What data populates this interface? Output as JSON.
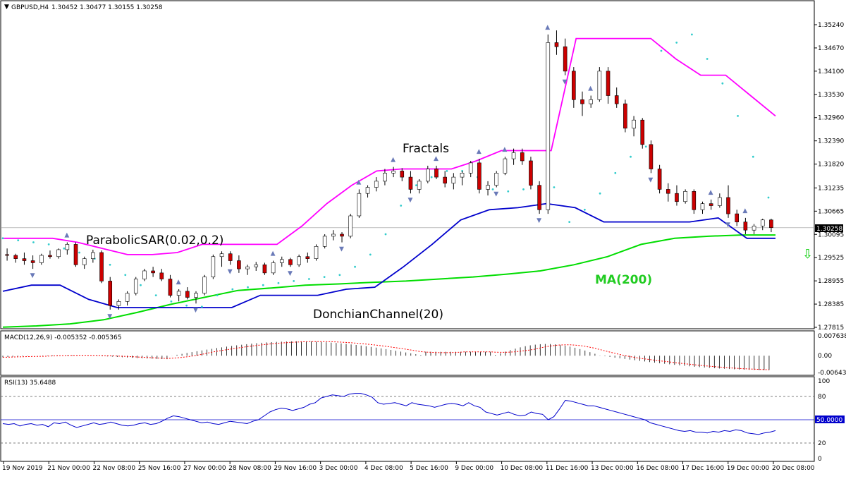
{
  "header": {
    "symbol": "GBPUSD,H4",
    "ohlc": "1.30452 1.30477 1.30155 1.30258"
  },
  "colors": {
    "background": "#ffffff",
    "candle_up": "#ffffff",
    "candle_down": "#cc0000",
    "candle_outline": "#000000",
    "sar": "#33cccc",
    "donchian_upper": "#ff00ff",
    "donchian_lower": "#0000cc",
    "ma200": "#00dd00",
    "ma200_label": "#22cc22",
    "fractal": "#6a7ab8",
    "macd_hist": "#000000",
    "macd_signal": "#ff0000",
    "rsi": "#0000cc",
    "arrow": "#00cc00"
  },
  "annotations": {
    "fractals": "Fractals",
    "sar": "ParabolicSAR(0.02,0.2)",
    "donchian": "DonchianChannel(20)",
    "ma": "MA(200)"
  },
  "macd": {
    "label": "MACD(12,26,9) -0.005352 -0.005365",
    "ticks": [
      "0.007638",
      "0.00",
      "-0.006434"
    ],
    "ylim": [
      -0.006434,
      0.007638
    ]
  },
  "rsi": {
    "label": "RSI(13) 35.6488",
    "ticks": [
      "100",
      "80",
      "50.0000",
      "20",
      "0"
    ],
    "levels": [
      80,
      50,
      20
    ],
    "values": [
      45,
      44,
      45,
      42,
      44,
      45,
      43,
      44,
      41,
      46,
      45,
      47,
      43,
      40,
      42,
      44,
      46,
      44,
      45,
      47,
      45,
      43,
      42,
      43,
      45,
      46,
      44,
      45,
      48,
      52,
      55,
      54,
      52,
      50,
      48,
      46,
      47,
      45,
      44,
      46,
      48,
      47,
      46,
      45,
      48,
      50,
      55,
      60,
      63,
      65,
      64,
      62,
      64,
      66,
      70,
      72,
      78,
      80,
      82,
      81,
      80,
      83,
      84,
      84,
      82,
      79,
      72,
      70,
      71,
      72,
      70,
      68,
      72,
      70,
      69,
      68,
      66,
      68,
      70,
      71,
      70,
      68,
      72,
      68,
      66,
      60,
      58,
      56,
      58,
      60,
      57,
      55,
      56,
      60,
      58,
      57,
      50,
      54,
      64,
      75,
      74,
      72,
      70,
      68,
      68,
      66,
      64,
      62,
      60,
      58,
      56,
      54,
      52,
      50,
      46,
      44,
      42,
      40,
      38,
      36,
      35,
      36,
      34,
      34,
      33,
      35,
      34,
      36,
      35,
      37,
      36,
      33,
      32,
      31,
      33,
      34,
      36
    ]
  },
  "chart_data": {
    "type": "candlestick",
    "title": "GBPUSD,H4",
    "current_price": "1.30258",
    "ylim": [
      1.27815,
      1.3524
    ],
    "y_ticks": [
      "1.35240",
      "1.34670",
      "1.34100",
      "1.33530",
      "1.32960",
      "1.32390",
      "1.31820",
      "1.31235",
      "1.30665",
      "1.30095",
      "1.29525",
      "1.28955",
      "1.28385",
      "1.27815"
    ],
    "x_ticks": [
      "19 Nov 2019",
      "21 Nov 00:00",
      "22 Nov 08:00",
      "25 Nov 16:00",
      "27 Nov 00:00",
      "28 Nov 08:00",
      "29 Nov 16:00",
      "3 Dec 00:00",
      "4 Dec 08:00",
      "5 Dec 16:00",
      "9 Dec 00:00",
      "10 Dec 08:00",
      "11 Dec 16:00",
      "13 Dec 00:00",
      "16 Dec 08:00",
      "17 Dec 16:00",
      "19 Dec 00:00",
      "20 Dec 08:00"
    ],
    "ma200": [
      1.2782,
      1.2785,
      1.279,
      1.28,
      1.2818,
      1.2838,
      1.2855,
      1.2872,
      1.2878,
      1.2885,
      1.2888,
      1.2892,
      1.2895,
      1.29,
      1.2905,
      1.2912,
      1.292,
      1.2935,
      1.2955,
      1.2985,
      1.3,
      1.3005,
      1.3008,
      1.3008
    ],
    "donchian_upper": [
      1.3,
      1.3,
      1.3,
      1.299,
      1.2975,
      1.296,
      1.296,
      1.2965,
      1.2985,
      1.2985,
      1.2985,
      1.2985,
      1.303,
      1.3085,
      1.313,
      1.3165,
      1.317,
      1.317,
      1.317,
      1.319,
      1.3215,
      1.3215,
      1.3215,
      1.349,
      1.349,
      1.349,
      1.349,
      1.344,
      1.34,
      1.34,
      1.335,
      1.33
    ],
    "donchian_lower": [
      1.287,
      1.2885,
      1.2885,
      1.285,
      1.283,
      1.283,
      1.283,
      1.283,
      1.283,
      1.286,
      1.286,
      1.286,
      1.2875,
      1.288,
      1.293,
      1.2985,
      1.3045,
      1.307,
      1.3075,
      1.3085,
      1.3075,
      1.304,
      1.304,
      1.304,
      1.304,
      1.305,
      1.3,
      1.3
    ],
    "sar": [
      1.3,
      1.2995,
      1.299,
      1.2985,
      1.2975,
      1.2965,
      1.295,
      1.2935,
      1.291,
      1.2885,
      1.286,
      1.2845,
      1.2835,
      1.2832,
      1.286,
      1.2875,
      1.288,
      1.2885,
      1.289,
      1.2895,
      1.29,
      1.2905,
      1.291,
      1.293,
      1.296,
      1.301,
      1.308,
      1.313,
      1.315,
      1.3165,
      1.3165,
      1.315,
      1.312,
      1.3115,
      1.312,
      1.312,
      1.3125,
      1.304,
      1.307,
      1.311,
      1.316,
      1.32,
      1.3225,
      1.346,
      1.348,
      1.35,
      1.344,
      1.338,
      1.33,
      1.32,
      1.31
    ],
    "candles": [
      [
        1.296,
        1.2975,
        1.2945,
        1.2958
      ],
      [
        1.2958,
        1.2962,
        1.294,
        1.295
      ],
      [
        1.295,
        1.2965,
        1.2935,
        1.2945
      ],
      [
        1.2945,
        1.2958,
        1.2925,
        1.294
      ],
      [
        1.294,
        1.2962,
        1.2935,
        1.2958
      ],
      [
        1.2958,
        1.297,
        1.295,
        1.2955
      ],
      [
        1.2955,
        1.2975,
        1.295,
        1.2972
      ],
      [
        1.2972,
        1.299,
        1.296,
        1.2985
      ],
      [
        1.2985,
        1.299,
        1.293,
        1.2935
      ],
      [
        1.2935,
        1.2955,
        1.2925,
        1.295
      ],
      [
        1.295,
        1.2972,
        1.294,
        1.2965
      ],
      [
        1.2965,
        1.297,
        1.289,
        1.2895
      ],
      [
        1.2895,
        1.2905,
        1.2825,
        1.2835
      ],
      [
        1.2835,
        1.285,
        1.2825,
        1.2845
      ],
      [
        1.2845,
        1.287,
        1.2835,
        1.2865
      ],
      [
        1.2865,
        1.2905,
        1.286,
        1.29
      ],
      [
        1.29,
        1.2925,
        1.2895,
        1.292
      ],
      [
        1.292,
        1.293,
        1.2905,
        1.2915
      ],
      [
        1.2915,
        1.2925,
        1.2895,
        1.29
      ],
      [
        1.29,
        1.291,
        1.2855,
        1.286
      ],
      [
        1.286,
        1.2875,
        1.2845,
        1.287
      ],
      [
        1.287,
        1.288,
        1.285,
        1.2855
      ],
      [
        1.2855,
        1.287,
        1.284,
        1.2865
      ],
      [
        1.2865,
        1.291,
        1.286,
        1.2905
      ],
      [
        1.2905,
        1.296,
        1.29,
        1.2955
      ],
      [
        1.2955,
        1.2968,
        1.293,
        1.2962
      ],
      [
        1.2962,
        1.2968,
        1.2935,
        1.2945
      ],
      [
        1.2945,
        1.2958,
        1.2915,
        1.2925
      ],
      [
        1.2925,
        1.2935,
        1.291,
        1.293
      ],
      [
        1.293,
        1.2942,
        1.292,
        1.2935
      ],
      [
        1.2935,
        1.294,
        1.291,
        1.2915
      ],
      [
        1.2915,
        1.2945,
        1.291,
        1.294
      ],
      [
        1.294,
        1.2955,
        1.293,
        1.2948
      ],
      [
        1.2948,
        1.2952,
        1.293,
        1.2935
      ],
      [
        1.2935,
        1.296,
        1.293,
        1.2955
      ],
      [
        1.2955,
        1.2965,
        1.294,
        1.295
      ],
      [
        1.295,
        1.2985,
        1.2945,
        1.298
      ],
      [
        1.298,
        1.301,
        1.2975,
        1.3005
      ],
      [
        1.3005,
        1.302,
        1.2995,
        1.301
      ],
      [
        1.301,
        1.3015,
        1.299,
        1.3005
      ],
      [
        1.3005,
        1.306,
        1.3,
        1.3055
      ],
      [
        1.3055,
        1.312,
        1.305,
        1.311
      ],
      [
        1.311,
        1.313,
        1.31,
        1.3125
      ],
      [
        1.3125,
        1.315,
        1.3115,
        1.314
      ],
      [
        1.314,
        1.317,
        1.313,
        1.316
      ],
      [
        1.316,
        1.3175,
        1.315,
        1.3165
      ],
      [
        1.3165,
        1.3172,
        1.314,
        1.315
      ],
      [
        1.315,
        1.3165,
        1.311,
        1.312
      ],
      [
        1.312,
        1.3145,
        1.311,
        1.314
      ],
      [
        1.314,
        1.3178,
        1.3135,
        1.317
      ],
      [
        1.317,
        1.3178,
        1.3145,
        1.315
      ],
      [
        1.315,
        1.3165,
        1.3125,
        1.3135
      ],
      [
        1.3135,
        1.316,
        1.312,
        1.315
      ],
      [
        1.315,
        1.3165,
        1.313,
        1.316
      ],
      [
        1.316,
        1.319,
        1.315,
        1.3185
      ],
      [
        1.3185,
        1.3195,
        1.311,
        1.312
      ],
      [
        1.312,
        1.314,
        1.3105,
        1.313
      ],
      [
        1.313,
        1.3165,
        1.3125,
        1.316
      ],
      [
        1.316,
        1.32,
        1.3155,
        1.3195
      ],
      [
        1.3195,
        1.322,
        1.318,
        1.321
      ],
      [
        1.321,
        1.322,
        1.318,
        1.319
      ],
      [
        1.319,
        1.32,
        1.312,
        1.313
      ],
      [
        1.313,
        1.314,
        1.306,
        1.307
      ],
      [
        1.307,
        1.35,
        1.306,
        1.348
      ],
      [
        1.348,
        1.351,
        1.345,
        1.347
      ],
      [
        1.347,
        1.349,
        1.34,
        1.341
      ],
      [
        1.341,
        1.342,
        1.332,
        1.334
      ],
      [
        1.334,
        1.336,
        1.33,
        1.333
      ],
      [
        1.333,
        1.335,
        1.332,
        1.334
      ],
      [
        1.334,
        1.342,
        1.3335,
        1.341
      ],
      [
        1.341,
        1.342,
        1.333,
        1.335
      ],
      [
        1.335,
        1.337,
        1.332,
        1.333
      ],
      [
        1.333,
        1.334,
        1.326,
        1.327
      ],
      [
        1.327,
        1.33,
        1.325,
        1.329
      ],
      [
        1.329,
        1.3295,
        1.322,
        1.323
      ],
      [
        1.323,
        1.324,
        1.316,
        1.317
      ],
      [
        1.317,
        1.318,
        1.311,
        1.312
      ],
      [
        1.312,
        1.3135,
        1.309,
        1.311
      ],
      [
        1.311,
        1.313,
        1.308,
        1.309
      ],
      [
        1.309,
        1.312,
        1.3085,
        1.3115
      ],
      [
        1.3115,
        1.312,
        1.306,
        1.307
      ],
      [
        1.307,
        1.309,
        1.306,
        1.3085
      ],
      [
        1.3085,
        1.3095,
        1.307,
        1.308
      ],
      [
        1.308,
        1.311,
        1.3075,
        1.31
      ],
      [
        1.31,
        1.313,
        1.305,
        1.306
      ],
      [
        1.306,
        1.307,
        1.303,
        1.304
      ],
      [
        1.304,
        1.305,
        1.301,
        1.302
      ],
      [
        1.302,
        1.3035,
        1.301,
        1.303
      ],
      [
        1.303,
        1.3048,
        1.302,
        1.3045
      ],
      [
        1.3045,
        1.3048,
        1.3015,
        1.3026
      ]
    ],
    "fractals_up_idx": [
      7,
      20,
      31,
      41,
      45,
      50,
      55,
      58,
      63,
      68,
      82,
      86
    ],
    "fractals_down_idx": [
      3,
      12,
      22,
      26,
      33,
      39,
      47,
      57,
      62,
      65,
      75,
      84
    ]
  }
}
